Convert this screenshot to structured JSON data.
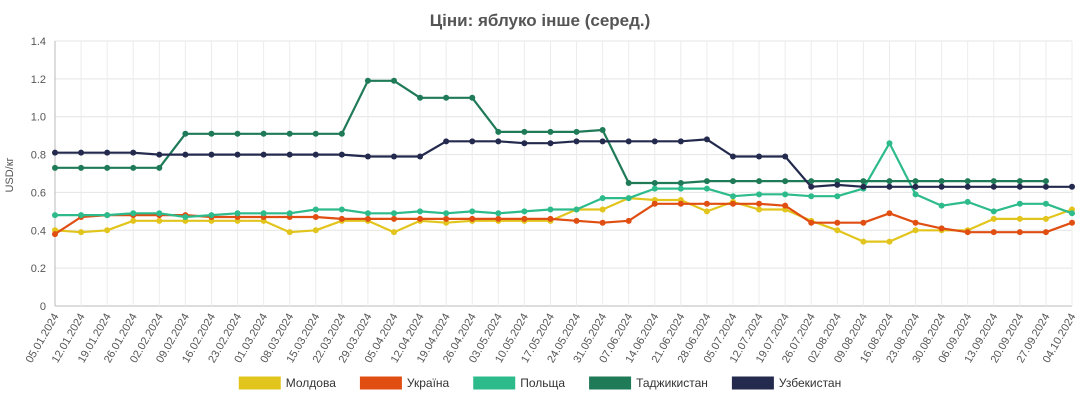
{
  "chart_data": {
    "type": "line",
    "title": "Ціни: яблуко інше (серед.)",
    "ylabel": "USD/кг",
    "xlabel": "",
    "ylim": [
      0,
      1.4
    ],
    "yticks": [
      "0",
      "0.2",
      "0.4",
      "0.6",
      "0.8",
      "1.0",
      "1.2",
      "1.4"
    ],
    "grid": true,
    "legend_position": "bottom",
    "x": [
      "05.01.2024",
      "12.01.2024",
      "19.01.2024",
      "26.01.2024",
      "02.02.2024",
      "09.02.2024",
      "16.02.2024",
      "23.02.2024",
      "01.03.2024",
      "08.03.2024",
      "15.03.2024",
      "22.03.2024",
      "29.03.2024",
      "05.04.2024",
      "12.04.2024",
      "19.04.2024",
      "26.04.2024",
      "03.05.2024",
      "10.05.2024",
      "17.05.2024",
      "24.05.2024",
      "31.05.2024",
      "07.06.2024",
      "14.06.2024",
      "21.06.2024",
      "28.06.2024",
      "05.07.2024",
      "12.07.2024",
      "19.07.2024",
      "26.07.2024",
      "02.08.2024",
      "09.08.2024",
      "16.08.2024",
      "23.08.2024",
      "30.08.2024",
      "06.09.2024",
      "13.09.2024",
      "20.09.2024",
      "27.09.2024",
      "04.10.2024"
    ],
    "series": [
      {
        "name": "Молдова",
        "color": "#e2c51c",
        "values": [
          0.4,
          0.39,
          0.4,
          0.45,
          0.45,
          0.45,
          0.45,
          0.45,
          0.45,
          0.39,
          0.4,
          0.45,
          0.45,
          0.39,
          0.45,
          0.44,
          0.45,
          0.45,
          0.45,
          0.45,
          0.51,
          0.51,
          0.57,
          0.56,
          0.56,
          0.5,
          0.55,
          0.51,
          0.51,
          0.45,
          0.4,
          0.34,
          0.34,
          0.4,
          0.4,
          0.4,
          0.46,
          0.46,
          0.46,
          0.51
        ]
      },
      {
        "name": "Україна",
        "color": "#e04e12",
        "values": [
          0.38,
          0.47,
          0.48,
          0.48,
          0.48,
          0.48,
          0.47,
          0.47,
          0.47,
          0.47,
          0.47,
          0.46,
          0.46,
          0.46,
          0.46,
          0.46,
          0.46,
          0.46,
          0.46,
          0.46,
          0.45,
          0.44,
          0.45,
          0.54,
          0.54,
          0.54,
          0.54,
          0.54,
          0.53,
          0.44,
          0.44,
          0.44,
          0.49,
          0.44,
          0.41,
          0.39,
          0.39,
          0.39,
          0.39,
          0.44
        ]
      },
      {
        "name": "Польща",
        "color": "#2dbb8c",
        "values": [
          0.48,
          0.48,
          0.48,
          0.49,
          0.49,
          0.47,
          0.48,
          0.49,
          0.49,
          0.49,
          0.51,
          0.51,
          0.49,
          0.49,
          0.5,
          0.49,
          0.5,
          0.49,
          0.5,
          0.51,
          0.51,
          0.57,
          0.57,
          0.62,
          0.62,
          0.62,
          0.58,
          0.59,
          0.59,
          0.58,
          0.58,
          0.62,
          0.86,
          0.59,
          0.53,
          0.55,
          0.5,
          0.54,
          0.54,
          0.49
        ]
      },
      {
        "name": "Таджикистан",
        "color": "#1f7a57",
        "values": [
          0.73,
          0.73,
          0.73,
          0.73,
          0.73,
          0.91,
          0.91,
          0.91,
          0.91,
          0.91,
          0.91,
          0.91,
          1.19,
          1.19,
          1.1,
          1.1,
          1.1,
          0.92,
          0.92,
          0.92,
          0.92,
          0.93,
          0.65,
          0.65,
          0.65,
          0.66,
          0.66,
          0.66,
          0.66,
          0.66,
          0.66,
          0.66,
          0.66,
          0.66,
          0.66,
          0.66,
          0.66,
          0.66,
          0.66,
          null
        ]
      },
      {
        "name": "Узбекистан",
        "color": "#232a4d",
        "values": [
          0.81,
          0.81,
          0.81,
          0.81,
          0.8,
          0.8,
          0.8,
          0.8,
          0.8,
          0.8,
          0.8,
          0.8,
          0.79,
          0.79,
          0.79,
          0.87,
          0.87,
          0.87,
          0.86,
          0.86,
          0.87,
          0.87,
          0.87,
          0.87,
          0.87,
          0.88,
          0.79,
          0.79,
          0.79,
          0.63,
          0.64,
          0.63,
          0.63,
          0.63,
          0.63,
          0.63,
          0.63,
          0.63,
          0.63,
          0.63
        ]
      }
    ]
  }
}
